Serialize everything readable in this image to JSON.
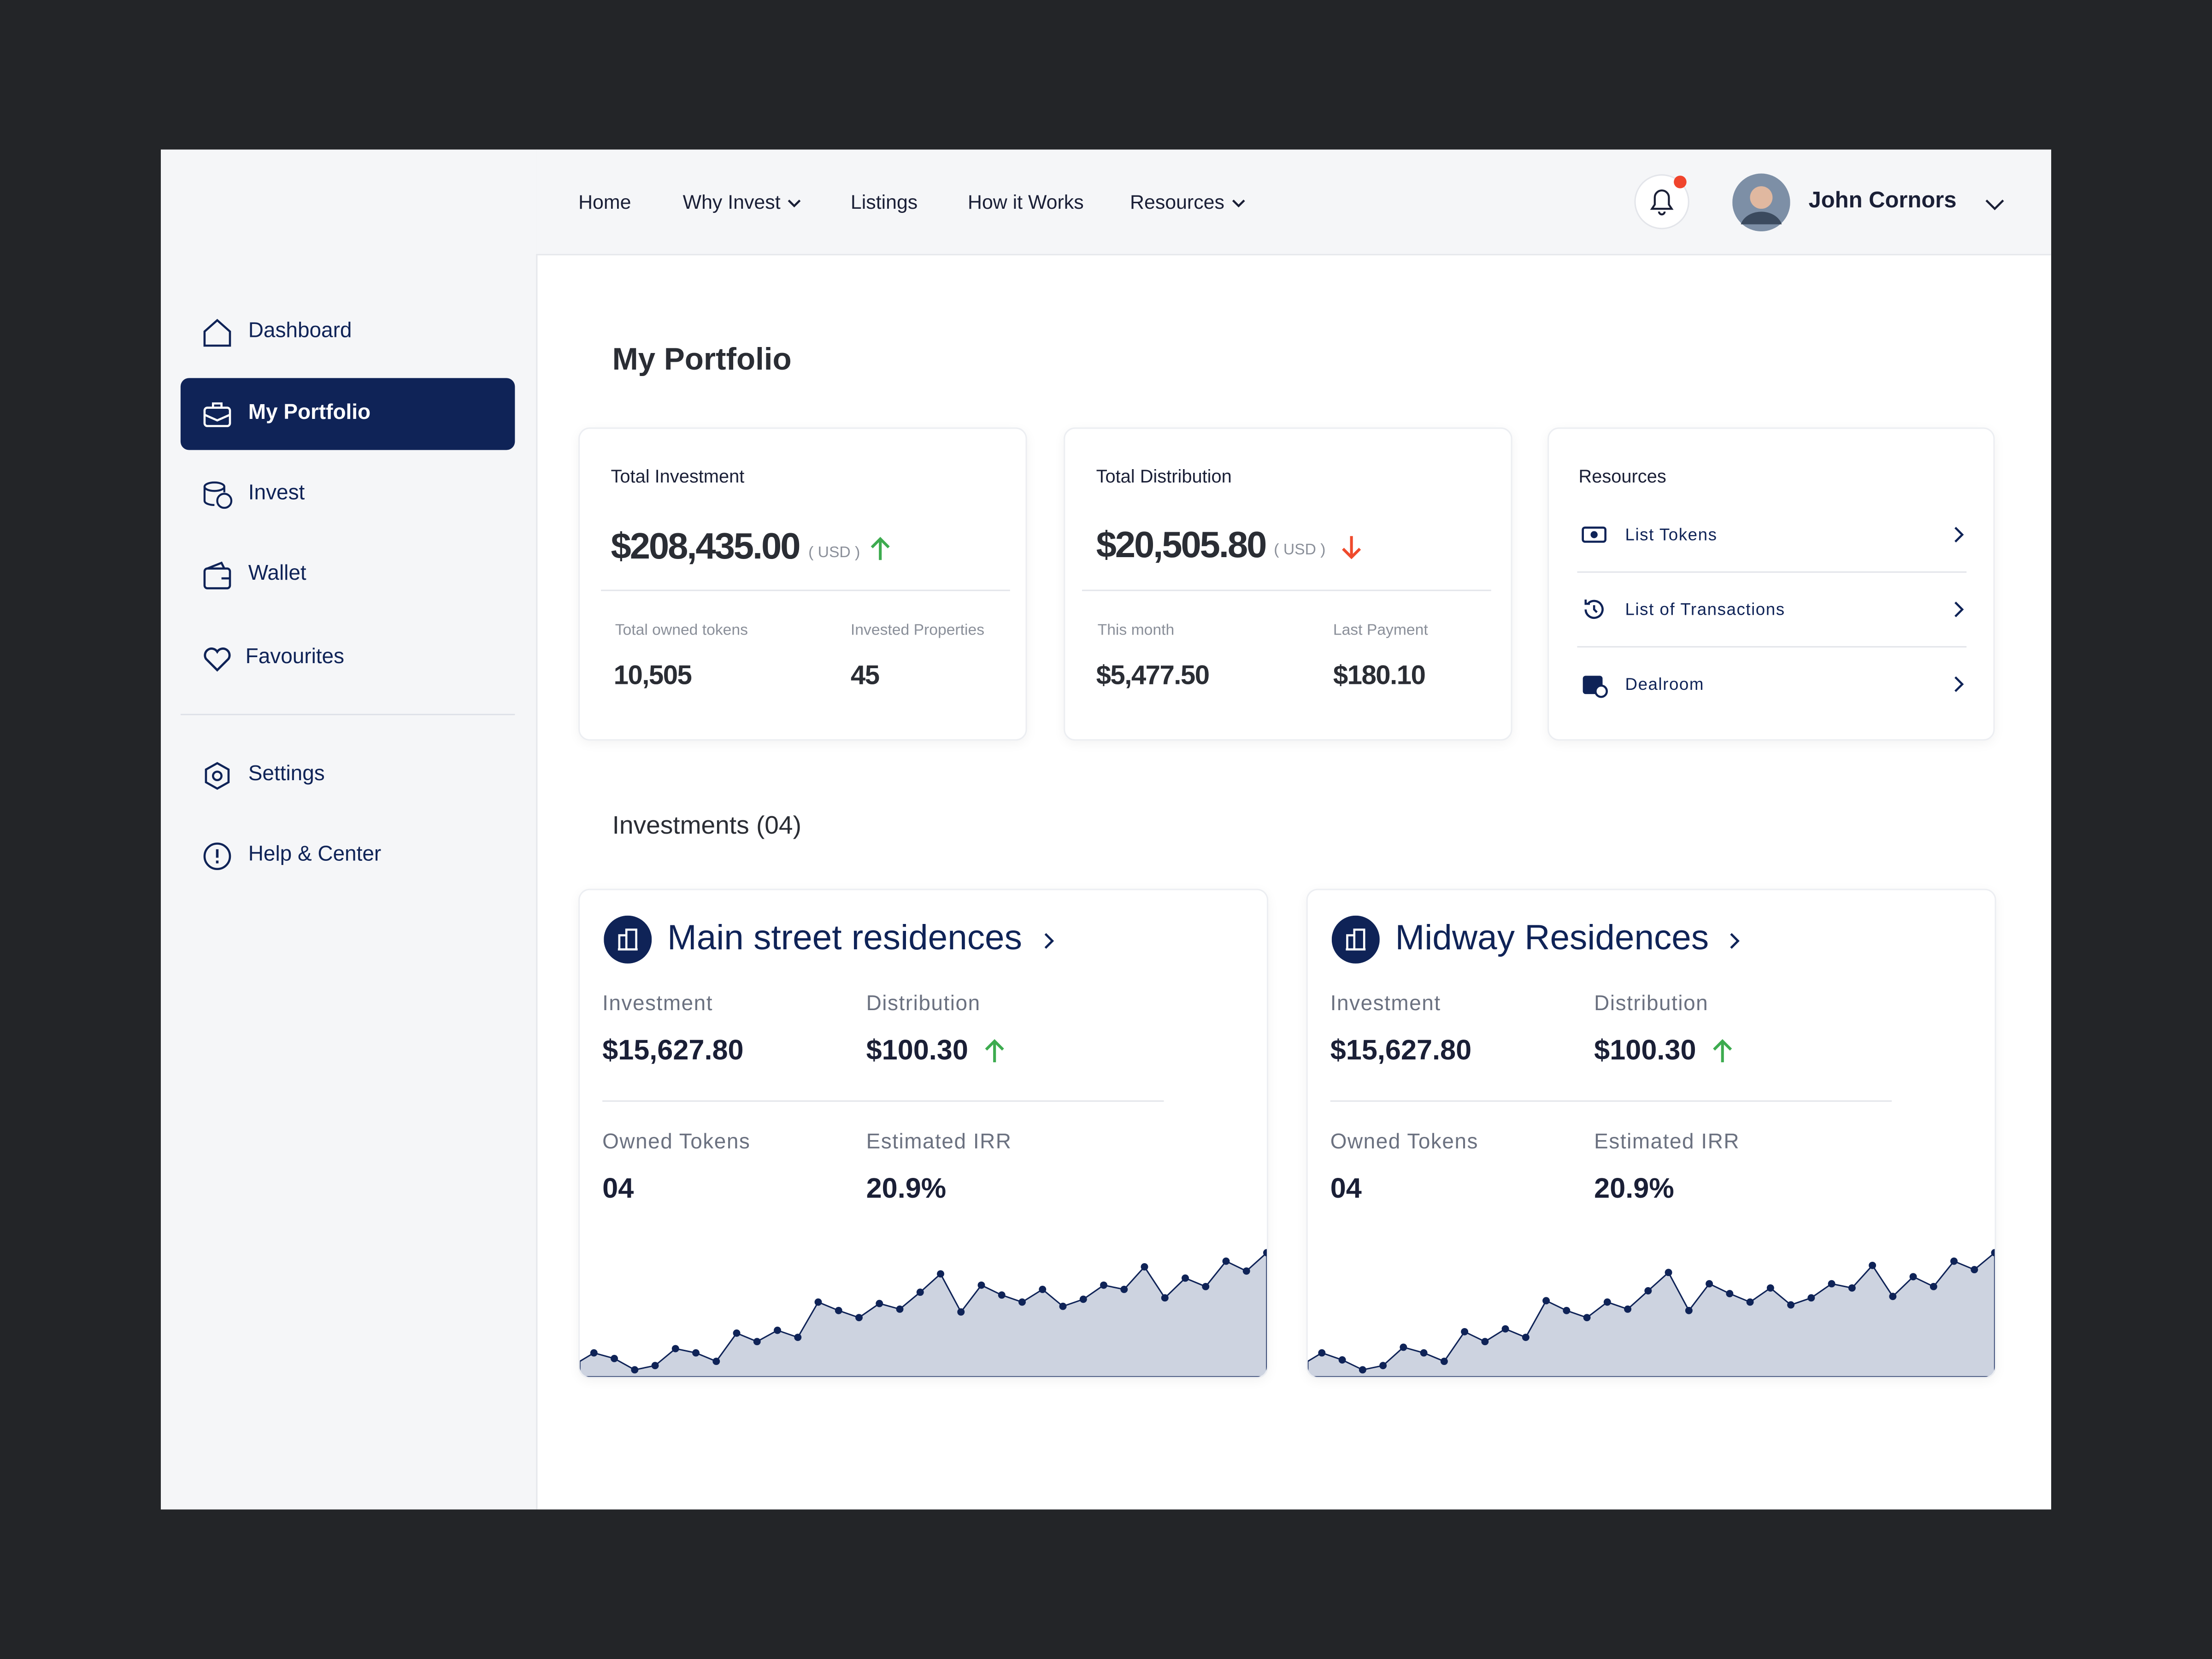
{
  "nav": {
    "items": [
      "Home",
      "Why Invest",
      "Listings",
      "How it Works",
      "Resources"
    ],
    "user": "John Cornors"
  },
  "sidebar": {
    "items": [
      "Dashboard",
      "My Portfolio",
      "Invest",
      "Wallet",
      "Favourites"
    ],
    "bottom": [
      "Settings",
      "Help & Center"
    ]
  },
  "page": {
    "title": "My Portfolio",
    "investment": {
      "label": "Total Investment",
      "amount": "$208,435.00",
      "unit": "( USD )",
      "stats": [
        {
          "label": "Total owned tokens",
          "value": "10,505"
        },
        {
          "label": "Invested Properties",
          "value": "45"
        }
      ]
    },
    "distribution": {
      "label": "Total Distribution",
      "amount": "$20,505.80",
      "unit": "( USD )",
      "stats": [
        {
          "label": "This month",
          "value": "$5,477.50"
        },
        {
          "label": "Last Payment",
          "value": "$180.10"
        }
      ]
    },
    "resources": {
      "label": "Resources",
      "items": [
        "List Tokens",
        "List of Transactions",
        "Dealroom"
      ]
    },
    "investments_title": "Investments (04)",
    "investments": [
      {
        "name": "Main street residences",
        "fields": [
          {
            "label": "Investment",
            "value": "$15,627.80"
          },
          {
            "label": "Distribution",
            "value": "$100.30"
          },
          {
            "label": "Owned Tokens",
            "value": "04"
          },
          {
            "label": "Estimated IRR",
            "value": "20.9%"
          }
        ],
        "sparkline": [
          17,
          13,
          5,
          8,
          20,
          17,
          11,
          31,
          25,
          33,
          28,
          53,
          47,
          42,
          52,
          48,
          60,
          73,
          46,
          65,
          58,
          53,
          62,
          50,
          55,
          65,
          62,
          78,
          56,
          70,
          64,
          82,
          75,
          88
        ]
      },
      {
        "name": "Midway Residences",
        "fields": [
          {
            "label": "Investment",
            "value": "$15,627.80"
          },
          {
            "label": "Distribution",
            "value": "$100.30"
          },
          {
            "label": "Owned Tokens",
            "value": "04"
          },
          {
            "label": "Estimated IRR",
            "value": "20.9%"
          }
        ],
        "sparkline": [
          17,
          12,
          5,
          8,
          21,
          17,
          11,
          32,
          25,
          34,
          28,
          54,
          47,
          42,
          53,
          48,
          61,
          74,
          47,
          66,
          59,
          53,
          63,
          51,
          56,
          66,
          63,
          79,
          57,
          71,
          64,
          82,
          76,
          88
        ]
      }
    ]
  }
}
